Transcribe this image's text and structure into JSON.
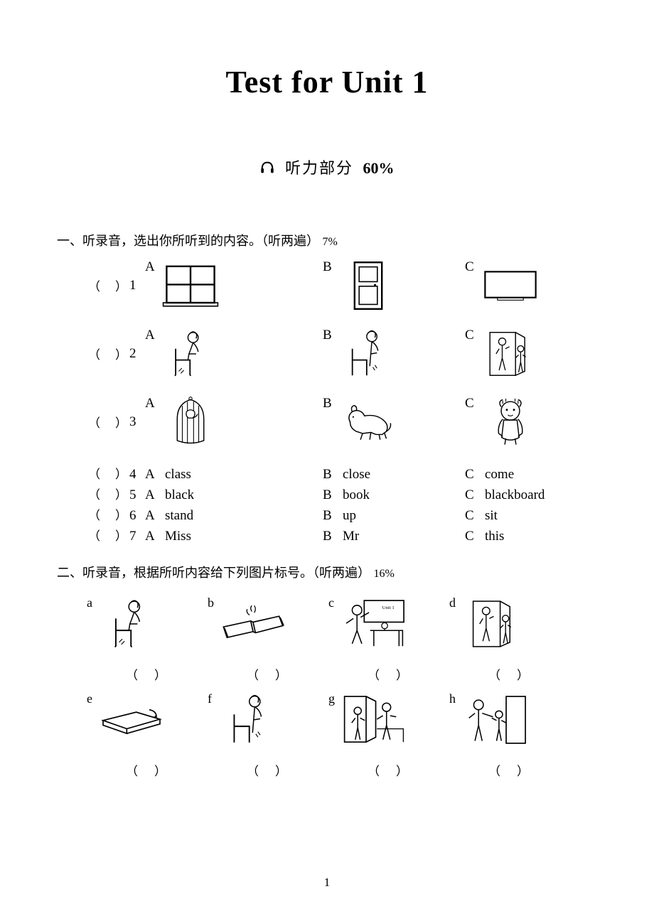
{
  "title": "Test for Unit 1",
  "subtitle": {
    "text": "听力部分",
    "percent": "60%"
  },
  "section1": {
    "heading_pre": "一、听录音，选出你所听到的内容。（听两遍）",
    "pct": "7%",
    "paren": "（　）",
    "questions": [
      {
        "n": "1",
        "type": "image",
        "icons": [
          "window",
          "door",
          "board"
        ]
      },
      {
        "n": "2",
        "type": "image",
        "icons": [
          "sit-down",
          "stand-up",
          "classroom-door"
        ]
      },
      {
        "n": "3",
        "type": "image",
        "icons": [
          "bird-cage",
          "dog",
          "doll"
        ]
      },
      {
        "n": "4",
        "type": "text",
        "a": "class",
        "b": "close",
        "c": "come"
      },
      {
        "n": "5",
        "type": "text",
        "a": "black",
        "b": "book",
        "c": "blackboard"
      },
      {
        "n": "6",
        "type": "text",
        "a": "stand",
        "b": "up",
        "c": "sit"
      },
      {
        "n": "7",
        "type": "text",
        "a": "Miss",
        "b": "Mr",
        "c": "this"
      }
    ]
  },
  "section2": {
    "heading_pre": "二、听录音，根据所听内容给下列图片标号。（听两遍）",
    "pct": "16%",
    "paren": "（　）",
    "items": [
      {
        "l": "a",
        "icon": "sit-down"
      },
      {
        "l": "b",
        "icon": "open-book"
      },
      {
        "l": "c",
        "icon": "teacher-board"
      },
      {
        "l": "d",
        "icon": "classroom-door"
      },
      {
        "l": "e",
        "icon": "close-book"
      },
      {
        "l": "f",
        "icon": "stand-up"
      },
      {
        "l": "g",
        "icon": "student-door"
      },
      {
        "l": "h",
        "icon": "teacher-student"
      }
    ]
  },
  "labels": {
    "A": "A",
    "B": "B",
    "C": "C"
  },
  "page_number": "1"
}
